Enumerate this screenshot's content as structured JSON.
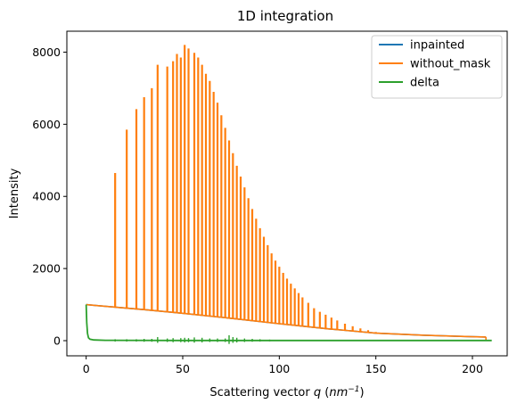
{
  "chart_data": {
    "type": "line",
    "title": "1D integration",
    "xlabel_prefix": "Scattering vector ",
    "xlabel_var": "q",
    "xlabel_unit_open": " (",
    "xlabel_unit": "nm",
    "xlabel_unit_exp": "−1",
    "xlabel_unit_close": ")",
    "ylabel": "Intensity",
    "xlim": [
      -10,
      218
    ],
    "ylim": [
      -420,
      8580
    ],
    "xticks": [
      0,
      50,
      100,
      150,
      200
    ],
    "yticks": [
      0,
      2000,
      4000,
      6000,
      8000
    ],
    "grid": false,
    "legend_position": "top-right",
    "baseline": {
      "x": [
        0,
        5,
        15,
        30,
        50,
        75,
        100,
        125,
        150,
        175,
        200,
        207
      ],
      "y": [
        1000,
        975,
        930,
        860,
        760,
        620,
        470,
        330,
        210,
        150,
        110,
        100
      ]
    },
    "peaks": {
      "x": [
        15,
        21,
        26,
        30,
        34,
        37,
        42,
        45,
        47,
        49,
        51,
        53,
        56,
        58,
        60,
        62,
        64,
        66,
        68,
        70,
        72,
        74,
        76,
        78,
        80,
        82,
        84,
        86,
        88,
        90,
        92,
        94,
        96,
        98,
        100,
        102,
        104,
        106,
        108,
        110,
        112,
        115,
        118,
        121,
        124,
        127,
        130,
        134,
        138,
        142,
        146,
        150
      ],
      "y": [
        4650,
        5850,
        6420,
        6750,
        7000,
        7650,
        7600,
        7750,
        7950,
        7850,
        8200,
        8100,
        7980,
        7850,
        7650,
        7400,
        7200,
        6900,
        6600,
        6250,
        5900,
        5550,
        5200,
        4850,
        4550,
        4250,
        3950,
        3650,
        3380,
        3120,
        2880,
        2650,
        2420,
        2220,
        2050,
        1880,
        1720,
        1580,
        1450,
        1320,
        1200,
        1050,
        900,
        800,
        720,
        640,
        560,
        470,
        400,
        340,
        290,
        240
      ]
    },
    "delta": {
      "x": [
        0,
        0.3,
        0.7,
        1.2,
        2,
        4,
        10,
        50,
        100,
        150,
        200,
        210
      ],
      "y": [
        1000,
        500,
        200,
        80,
        40,
        20,
        10,
        5,
        5,
        5,
        5,
        5
      ]
    },
    "delta_wiggles": {
      "x": [
        15,
        21,
        26,
        30,
        34,
        37,
        42,
        45,
        49,
        51,
        53,
        56,
        60,
        64,
        68,
        72,
        74,
        76,
        78,
        82,
        86,
        90,
        95,
        100
      ],
      "y": [
        40,
        40,
        40,
        50,
        50,
        100,
        60,
        70,
        70,
        80,
        70,
        90,
        80,
        60,
        60,
        60,
        150,
        100,
        80,
        60,
        50,
        40,
        30,
        20
      ]
    },
    "series": [
      {
        "name": "inpainted",
        "color": "#1f77b4"
      },
      {
        "name": "without_mask",
        "color": "#ff7f0e"
      },
      {
        "name": "delta",
        "color": "#2ca02c"
      }
    ]
  }
}
